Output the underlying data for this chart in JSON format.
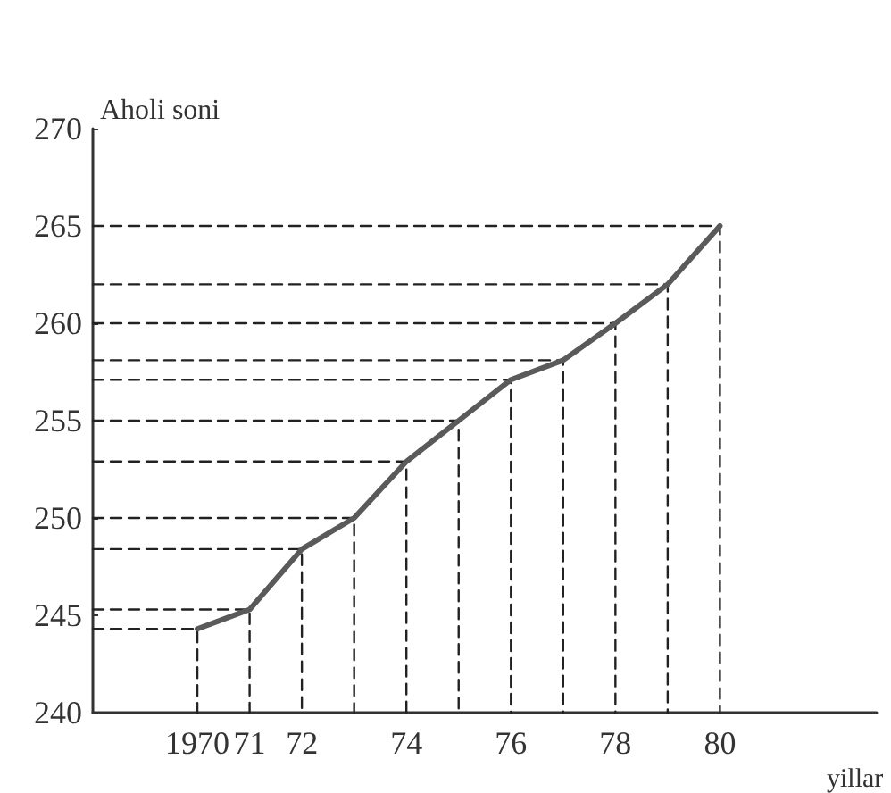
{
  "chart_data": {
    "type": "line",
    "xlabel": "yillar",
    "ylabel": "Aholi soni",
    "x": [
      1970,
      1971,
      1972,
      1973,
      1974,
      1975,
      1976,
      1977,
      1978,
      1979,
      1980
    ],
    "series": [
      {
        "color": "#5a5a5a",
        "values": [
          244.3,
          245.3,
          248.4,
          250,
          252.9,
          255,
          257.1,
          258.1,
          260,
          262,
          265
        ]
      },
      {
        "type": "line",
        "line_style": "dashed",
        "color": "#222222",
        "x": [
          1968,
          1970,
          1970
        ],
        "values": [
          244.3,
          244.3,
          240
        ]
      },
      {
        "type": "line",
        "line_style": "dashed",
        "color": "#222222",
        "x": [
          1968,
          1971,
          1971
        ],
        "values": [
          245.3,
          245.3,
          240
        ]
      },
      {
        "type": "line",
        "line_style": "dashed",
        "color": "#222222",
        "x": [
          1968,
          1972,
          1972
        ],
        "values": [
          248.4,
          248.4,
          240
        ]
      },
      {
        "type": "line",
        "line_style": "dashed",
        "color": "#222222",
        "x": [
          1968,
          1973,
          1973
        ],
        "values": [
          250,
          250,
          240
        ]
      },
      {
        "type": "line",
        "line_style": "dashed",
        "color": "#222222",
        "x": [
          1968,
          1974,
          1974
        ],
        "values": [
          252.9,
          252.9,
          240
        ]
      },
      {
        "type": "line",
        "line_style": "dashed",
        "color": "#222222",
        "x": [
          1968,
          1975,
          1975
        ],
        "values": [
          255,
          255,
          240
        ]
      },
      {
        "type": "line",
        "line_style": "dashed",
        "color": "#222222",
        "x": [
          1968,
          1976,
          1976
        ],
        "values": [
          257.1,
          257.1,
          240
        ]
      },
      {
        "type": "line",
        "line_style": "dashed",
        "color": "#222222",
        "x": [
          1968,
          1977,
          1977
        ],
        "values": [
          258.1,
          258.1,
          240
        ]
      },
      {
        "type": "line",
        "line_style": "dashed",
        "color": "#222222",
        "x": [
          1968,
          1978,
          1978
        ],
        "values": [
          260,
          260,
          240
        ]
      },
      {
        "type": "line",
        "line_style": "dashed",
        "color": "#222222",
        "x": [
          1968,
          1979,
          1979
        ],
        "values": [
          262,
          262,
          240
        ]
      },
      {
        "type": "line",
        "line_style": "dashed",
        "color": "#222222",
        "x": [
          1968,
          1980,
          1980
        ],
        "values": [
          265,
          265,
          240
        ]
      }
    ],
    "xlim": [
      1968,
      1983
    ],
    "xticks": [
      {
        "value": 1970,
        "label": "1970"
      },
      {
        "value": 1971,
        "label": "71"
      },
      {
        "value": 1972,
        "label": "72"
      },
      {
        "value": 1974,
        "label": "74"
      },
      {
        "value": 1976,
        "label": "76"
      },
      {
        "value": 1978,
        "label": "78"
      },
      {
        "value": 1980,
        "label": "80"
      }
    ],
    "ylim": [
      240,
      270
    ],
    "yticks": [
      240,
      245,
      250,
      255,
      260,
      265,
      270
    ],
    "marker": "none",
    "line_style": "solid"
  }
}
